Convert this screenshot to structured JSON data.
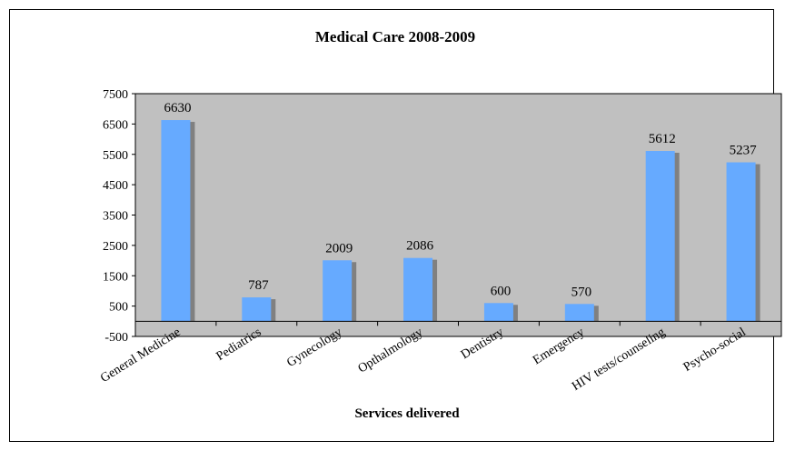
{
  "chart_data": {
    "type": "bar",
    "title": "Medical Care 2008-2009",
    "xlabel": "Services delivered",
    "ylabel": "",
    "categories": [
      "General Medicine",
      "Pediatrics",
      "Gynecology",
      "Opthalmology",
      "Dentistry",
      "Emergency",
      "HIV tests/counseling",
      "Psycho-social"
    ],
    "values": [
      6630,
      787,
      2009,
      2086,
      600,
      570,
      5612,
      5237
    ],
    "ylim": [
      -500,
      7500
    ],
    "yticks": [
      -500,
      500,
      1500,
      2500,
      3500,
      4500,
      5500,
      6500,
      7500
    ],
    "ytick_labels": [
      "-500",
      "500",
      "1500",
      "2500",
      "3500",
      "4500",
      "5500",
      "6500",
      "7500"
    ],
    "data_labels": [
      "6630",
      "787",
      "2009",
      "2086",
      "600",
      "570",
      "5612",
      "5237"
    ],
    "legend": "none",
    "grid": false,
    "colors": {
      "bar": "#66aaff",
      "bar_shadow": "#808080",
      "plot_background": "#c0c0c0",
      "axis": "#000000"
    }
  }
}
